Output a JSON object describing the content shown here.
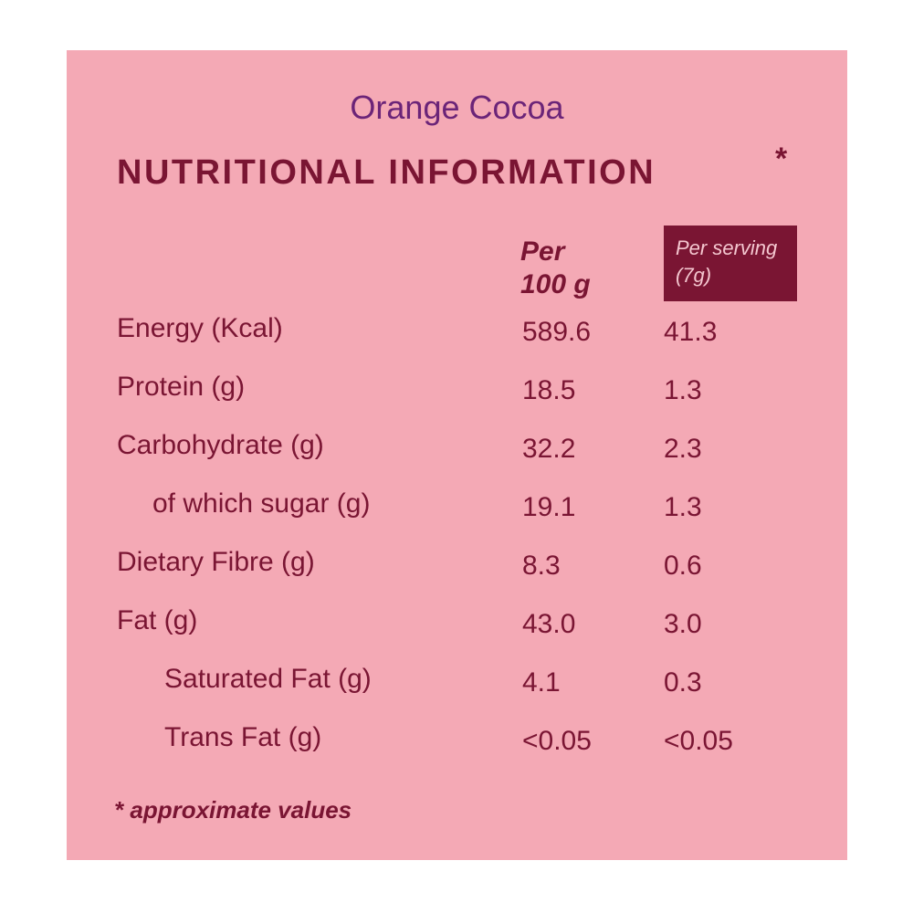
{
  "header": {
    "title": "Orange Cocoa",
    "heading": "NUTRITIONAL INFORMATION",
    "heading_mark": "*"
  },
  "table": {
    "columns": [
      [
        "Per",
        "100 g"
      ],
      [
        "Per serving",
        "(7g)"
      ]
    ],
    "rows": [
      [
        "Energy (Kcal)",
        "589.6",
        "41.3"
      ],
      [
        "Protein (g)",
        "18.5",
        "1.3"
      ],
      [
        "Carbohydrate (g)",
        "32.2",
        "2.3"
      ],
      [
        "of which sugar (g)",
        "19.1",
        "1.3"
      ],
      [
        "Dietary Fibre (g)",
        "8.3",
        "0.6"
      ],
      [
        "Fat (g)",
        "43.0",
        "3.0"
      ],
      [
        "Saturated Fat (g)",
        "4.1",
        "0.3"
      ],
      [
        "Trans Fat (g)",
        "<0.05",
        "<0.05"
      ]
    ]
  },
  "footnote": {
    "mark": "*",
    "text": "approximate values"
  }
}
